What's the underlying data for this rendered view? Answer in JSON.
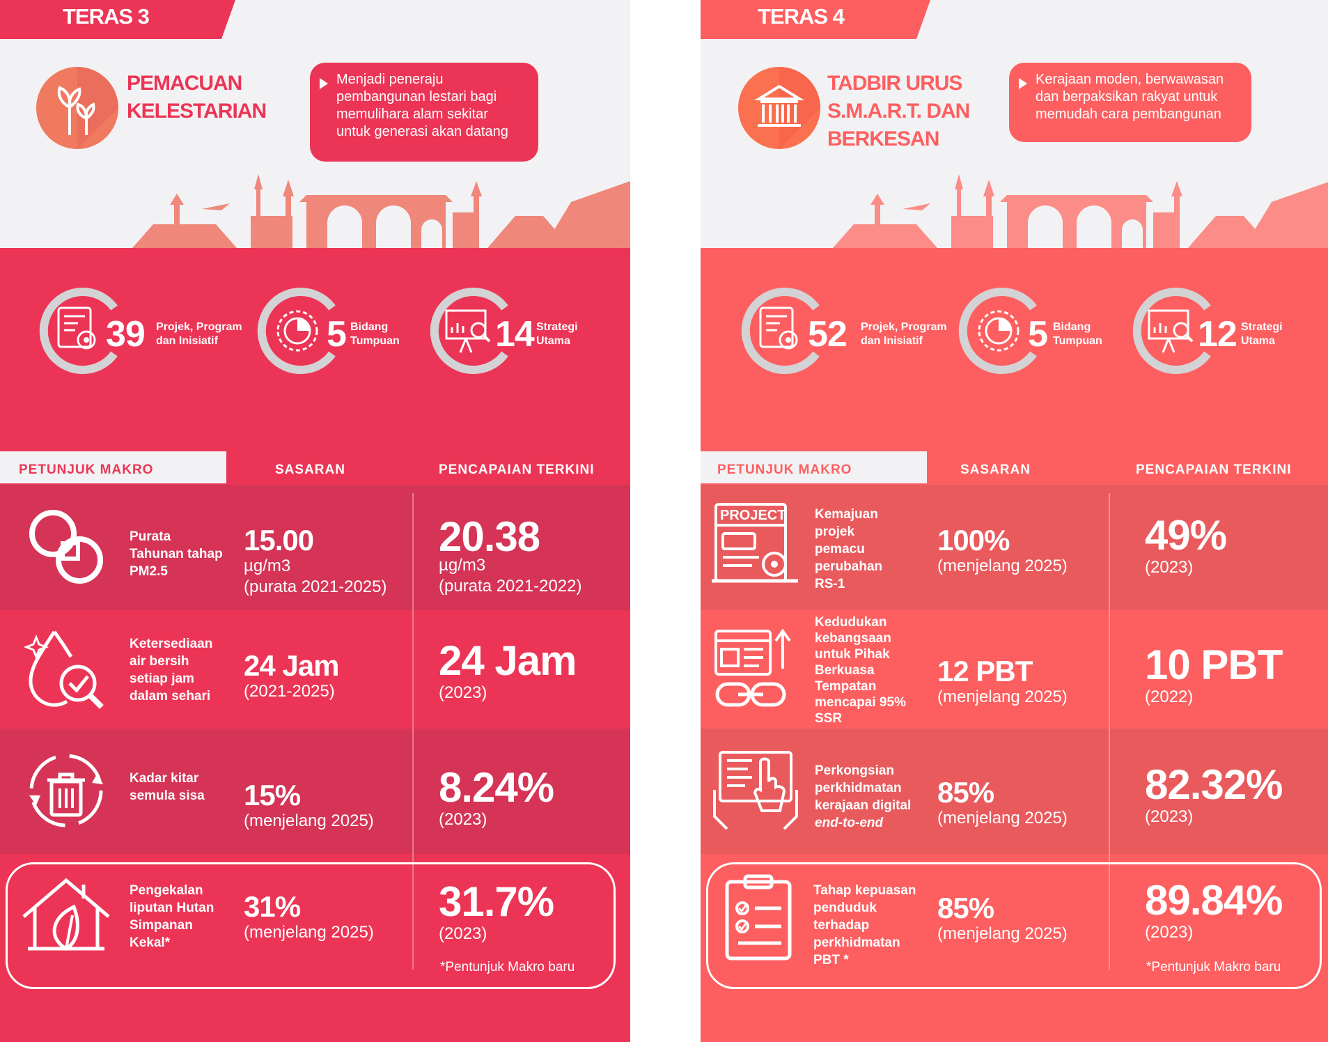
{
  "left": {
    "tag": "TERAS 3",
    "title_lines": [
      "PEMACUAN",
      "KELESTARIAN"
    ],
    "description": "Menjadi peneraju pembangunan lestari bagi memulihara alam sekitar untuk generasi akan datang",
    "stats": [
      {
        "value": "39",
        "label_1": "Projek, Program",
        "label_2": "dan Inisiatif",
        "icon": "project-document-gear-icon"
      },
      {
        "value": "5",
        "label_1": "Bidang",
        "label_2": "Tumpuan",
        "icon": "pie-chart-gear-icon"
      },
      {
        "value": "14",
        "label_1": "Strategi",
        "label_2": "Utama",
        "icon": "presentation-chart-icon"
      }
    ],
    "headers": {
      "indicator": "PETUNJUK MAKRO",
      "target": "SASARAN",
      "achievement": "PENCAPAIAN TERKINI"
    },
    "rows": [
      {
        "icon": "pm25-rings-icon",
        "label": "Purata Tahunan tahap PM2.5",
        "target_value": "15.00",
        "target_sub_1": "µg/m3",
        "target_sub_2": "(purata 2021-2025)",
        "ach_value": "20.38",
        "ach_sub_1": "µg/m3",
        "ach_sub_2": "(purata 2021-2022)"
      },
      {
        "icon": "water-drop-check-icon",
        "label": "Ketersediaan air bersih setiap jam dalam sehari",
        "target_value": "24 Jam",
        "target_sub_1": "(2021-2025)",
        "ach_value": "24 Jam",
        "ach_sub_1": "(2023)"
      },
      {
        "icon": "recycle-bin-icon",
        "label": "Kadar kitar semula sisa",
        "target_value": "15%",
        "target_sub_1": "(menjelang 2025)",
        "ach_value": "8.24%",
        "ach_sub_1": "(2023)"
      },
      {
        "icon": "house-leaf-icon",
        "label": "Pengekalan liputan Hutan Simpanan Kekal*",
        "target_value": "31%",
        "target_sub_1": "(menjelang 2025)",
        "ach_value": "31.7%",
        "ach_sub_1": "(2023)"
      }
    ],
    "note": "*Pentunjuk Makro baru"
  },
  "right": {
    "tag": "TERAS 4",
    "title_lines": [
      "TADBIR URUS",
      "S.M.A.R.T. DAN",
      "BERKESAN"
    ],
    "description": "Kerajaan moden, berwawasan dan berpaksikan rakyat untuk memudah cara pembangunan",
    "stats": [
      {
        "value": "52",
        "label_1": "Projek, Program",
        "label_2": "dan Inisiatif",
        "icon": "project-document-gear-icon"
      },
      {
        "value": "5",
        "label_1": "Bidang",
        "label_2": "Tumpuan",
        "icon": "pie-chart-gear-icon"
      },
      {
        "value": "12",
        "label_1": "Strategi",
        "label_2": "Utama",
        "icon": "presentation-chart-icon"
      }
    ],
    "headers": {
      "indicator": "PETUNJUK MAKRO",
      "target": "SASARAN",
      "achievement": "PENCAPAIAN TERKINI"
    },
    "rows": [
      {
        "icon": "project-board-icon",
        "project_badge": "PROJECT",
        "label": "Kemajuan projek pemacu perubahan RS-1",
        "target_value": "100%",
        "target_sub_1": "(menjelang 2025)",
        "ach_value": "49%",
        "ach_sub_1": "(2023)"
      },
      {
        "icon": "browser-chain-icon",
        "label": "Kedudukan kebangsaan untuk Pihak Berkuasa Tempatan mencapai 95% SSR",
        "target_value": "12 PBT",
        "target_sub_1": "(menjelang 2025)",
        "ach_value": "10 PBT",
        "ach_sub_1": "(2022)"
      },
      {
        "icon": "tablet-hands-icon",
        "label": "Perkongsian perkhidmatan kerajaan digital",
        "label_italic": "end-to-end",
        "target_value": "85%",
        "target_sub_1": "(menjelang 2025)",
        "ach_value": "82.32%",
        "ach_sub_1": "(2023)"
      },
      {
        "icon": "clipboard-checklist-icon",
        "label": "Tahap kepuasan penduduk terhadap perkhidmatan PBT *",
        "target_value": "85%",
        "target_sub_1": "(menjelang 2025)",
        "ach_value": "89.84%",
        "ach_sub_1": "(2023)"
      }
    ],
    "note": "*Pentunjuk Makro baru"
  },
  "colors": {
    "left_main": "#ec3556",
    "left_row_dark": "#d53456",
    "right_main": "#fd5f60",
    "right_row_dark": "#e95a5d",
    "header_bg": "#f2f2f4"
  }
}
